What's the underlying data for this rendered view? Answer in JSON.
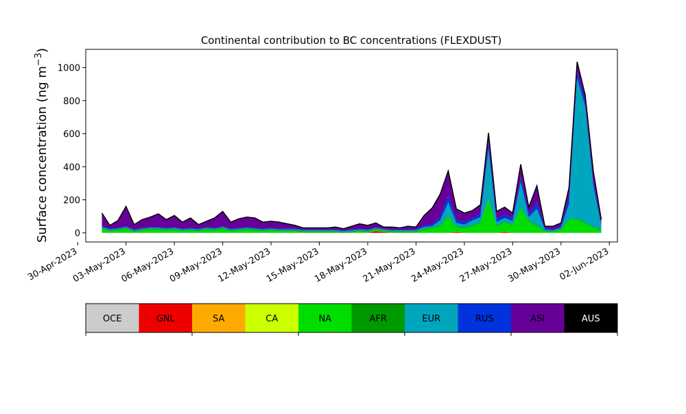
{
  "chart_data": {
    "type": "area",
    "stacked": true,
    "title": "Continental contribution to BC concentrations (FLEXDUST)",
    "ylabel_text": "Surface concentration (ng m",
    "ylabel_sup": "−3",
    "ylabel_close": ")",
    "xlabel": "",
    "x_axis": "date",
    "x_range": [
      "2023-04-30T12:00",
      "2023-06-02T12:00"
    ],
    "ylim": [
      -55,
      1110
    ],
    "yticks": [
      0,
      200,
      400,
      600,
      800,
      1000
    ],
    "xticks": [
      {
        "date": "2023-04-30",
        "label": "30-Apr-2023"
      },
      {
        "date": "2023-05-03",
        "label": "03-May-2023"
      },
      {
        "date": "2023-05-06",
        "label": "06-May-2023"
      },
      {
        "date": "2023-05-09",
        "label": "09-May-2023"
      },
      {
        "date": "2023-05-12",
        "label": "12-May-2023"
      },
      {
        "date": "2023-05-15",
        "label": "15-May-2023"
      },
      {
        "date": "2023-05-18",
        "label": "18-May-2023"
      },
      {
        "date": "2023-05-21",
        "label": "21-May-2023"
      },
      {
        "date": "2023-05-24",
        "label": "24-May-2023"
      },
      {
        "date": "2023-05-27",
        "label": "27-May-2023"
      },
      {
        "date": "2023-05-30",
        "label": "30-May-2023"
      },
      {
        "date": "2023-06-02",
        "label": "02-Jun-2023"
      }
    ],
    "x": [
      "2023-05-01T12:00",
      "2023-05-02T00:00",
      "2023-05-02T12:00",
      "2023-05-03T00:00",
      "2023-05-03T12:00",
      "2023-05-04T00:00",
      "2023-05-04T12:00",
      "2023-05-05T00:00",
      "2023-05-05T12:00",
      "2023-05-06T00:00",
      "2023-05-06T12:00",
      "2023-05-07T00:00",
      "2023-05-07T12:00",
      "2023-05-08T00:00",
      "2023-05-08T12:00",
      "2023-05-09T00:00",
      "2023-05-09T12:00",
      "2023-05-10T00:00",
      "2023-05-10T12:00",
      "2023-05-11T00:00",
      "2023-05-11T12:00",
      "2023-05-12T00:00",
      "2023-05-12T12:00",
      "2023-05-13T00:00",
      "2023-05-13T12:00",
      "2023-05-14T00:00",
      "2023-05-14T12:00",
      "2023-05-15T00:00",
      "2023-05-15T12:00",
      "2023-05-16T00:00",
      "2023-05-16T12:00",
      "2023-05-17T00:00",
      "2023-05-17T12:00",
      "2023-05-18T00:00",
      "2023-05-18T12:00",
      "2023-05-19T00:00",
      "2023-05-19T12:00",
      "2023-05-20T00:00",
      "2023-05-20T12:00",
      "2023-05-21T00:00",
      "2023-05-21T12:00",
      "2023-05-22T00:00",
      "2023-05-22T12:00",
      "2023-05-23T00:00",
      "2023-05-23T12:00",
      "2023-05-24T00:00",
      "2023-05-24T12:00",
      "2023-05-25T00:00",
      "2023-05-25T12:00",
      "2023-05-26T00:00",
      "2023-05-26T12:00",
      "2023-05-27T00:00",
      "2023-05-27T12:00",
      "2023-05-28T00:00",
      "2023-05-28T12:00",
      "2023-05-29T00:00",
      "2023-05-29T12:00",
      "2023-05-30T00:00",
      "2023-05-30T12:00",
      "2023-05-31T00:00",
      "2023-05-31T12:00",
      "2023-06-01T00:00",
      "2023-06-01T12:00"
    ],
    "series": [
      {
        "name": "OCE",
        "color": "#cccccc",
        "values": [
          0,
          0,
          0,
          0,
          0,
          0,
          0,
          0,
          0,
          0,
          0,
          0,
          0,
          0,
          0,
          0,
          0,
          0,
          0,
          0,
          0,
          0,
          0,
          0,
          0,
          0,
          0,
          0,
          0,
          0,
          0,
          0,
          0,
          0,
          0,
          0,
          0,
          0,
          0,
          0,
          0,
          0,
          0,
          0,
          0,
          0,
          0,
          0,
          0,
          0,
          0,
          0,
          0,
          0,
          0,
          0,
          0,
          0,
          0,
          0,
          0,
          0,
          0
        ]
      },
      {
        "name": "GNL",
        "color": "#ee0000",
        "values": [
          0,
          0,
          0,
          0,
          0,
          0,
          0,
          0,
          0,
          0,
          0,
          0,
          0,
          0,
          0,
          0,
          0,
          0,
          0,
          0,
          0,
          0,
          0,
          0,
          0,
          0,
          0,
          0,
          0,
          0,
          0,
          0,
          0,
          0,
          10,
          5,
          0,
          0,
          0,
          0,
          0,
          0,
          0,
          0,
          5,
          0,
          0,
          0,
          0,
          0,
          5,
          0,
          0,
          0,
          0,
          0,
          0,
          0,
          0,
          0,
          0,
          0,
          0
        ]
      },
      {
        "name": "SA",
        "color": "#ffaa00",
        "values": [
          0,
          0,
          0,
          0,
          0,
          0,
          0,
          0,
          0,
          0,
          0,
          0,
          0,
          0,
          0,
          0,
          0,
          0,
          0,
          0,
          0,
          0,
          0,
          0,
          0,
          0,
          0,
          0,
          0,
          0,
          0,
          0,
          0,
          0,
          0,
          0,
          0,
          0,
          0,
          0,
          0,
          0,
          0,
          0,
          0,
          0,
          0,
          0,
          0,
          0,
          0,
          0,
          0,
          0,
          0,
          0,
          0,
          0,
          0,
          0,
          0,
          0,
          0
        ]
      },
      {
        "name": "CA",
        "color": "#ccff00",
        "values": [
          0,
          0,
          0,
          0,
          0,
          0,
          0,
          0,
          0,
          0,
          0,
          0,
          0,
          0,
          0,
          0,
          0,
          0,
          0,
          0,
          0,
          0,
          0,
          0,
          0,
          0,
          0,
          0,
          0,
          0,
          0,
          0,
          0,
          0,
          0,
          0,
          0,
          0,
          0,
          0,
          0,
          0,
          0,
          0,
          0,
          0,
          0,
          0,
          0,
          0,
          0,
          0,
          0,
          0,
          0,
          0,
          0,
          0,
          0,
          0,
          0,
          0,
          0
        ]
      },
      {
        "name": "NA",
        "color": "#00dd00",
        "values": [
          25,
          10,
          15,
          25,
          5,
          15,
          20,
          20,
          15,
          20,
          10,
          15,
          10,
          20,
          15,
          25,
          10,
          15,
          20,
          15,
          10,
          15,
          10,
          10,
          10,
          5,
          5,
          5,
          5,
          5,
          0,
          5,
          10,
          5,
          10,
          5,
          5,
          5,
          5,
          5,
          20,
          30,
          40,
          100,
          30,
          30,
          40,
          60,
          200,
          40,
          60,
          45,
          150,
          70,
          40,
          10,
          5,
          20,
          80,
          80,
          60,
          30,
          15
        ]
      },
      {
        "name": "AFR",
        "color": "#009900",
        "values": [
          5,
          5,
          5,
          5,
          5,
          5,
          5,
          5,
          5,
          5,
          5,
          5,
          5,
          5,
          5,
          5,
          5,
          5,
          5,
          5,
          5,
          5,
          5,
          5,
          5,
          5,
          5,
          5,
          5,
          5,
          5,
          5,
          5,
          5,
          5,
          5,
          5,
          5,
          5,
          5,
          5,
          5,
          5,
          5,
          5,
          5,
          5,
          5,
          5,
          5,
          5,
          5,
          5,
          5,
          5,
          5,
          5,
          5,
          5,
          5,
          5,
          5,
          5
        ]
      },
      {
        "name": "EUR",
        "color": "#00a6bd",
        "values": [
          5,
          5,
          5,
          5,
          5,
          5,
          5,
          5,
          5,
          5,
          5,
          5,
          5,
          5,
          5,
          5,
          5,
          5,
          5,
          5,
          5,
          5,
          5,
          5,
          5,
          5,
          5,
          5,
          5,
          5,
          5,
          5,
          5,
          5,
          5,
          5,
          5,
          5,
          5,
          5,
          10,
          5,
          30,
          80,
          20,
          15,
          30,
          30,
          300,
          20,
          20,
          20,
          150,
          20,
          100,
          5,
          5,
          5,
          90,
          850,
          700,
          250,
          20
        ]
      },
      {
        "name": "RUS",
        "color": "#0033dd",
        "values": [
          5,
          5,
          5,
          5,
          5,
          5,
          5,
          5,
          5,
          5,
          5,
          5,
          5,
          5,
          5,
          5,
          5,
          5,
          5,
          5,
          5,
          5,
          5,
          5,
          5,
          5,
          5,
          5,
          5,
          5,
          5,
          5,
          5,
          5,
          5,
          5,
          5,
          5,
          5,
          5,
          10,
          10,
          20,
          40,
          20,
          15,
          15,
          20,
          40,
          20,
          20,
          20,
          30,
          20,
          40,
          10,
          5,
          10,
          40,
          40,
          30,
          30,
          10
        ]
      },
      {
        "name": "ASI",
        "color": "#660099",
        "values": [
          80,
          20,
          45,
          120,
          30,
          50,
          60,
          80,
          50,
          70,
          40,
          60,
          25,
          35,
          60,
          90,
          40,
          55,
          60,
          60,
          40,
          40,
          40,
          30,
          20,
          10,
          10,
          10,
          10,
          15,
          10,
          20,
          30,
          25,
          25,
          10,
          15,
          10,
          20,
          15,
          60,
          100,
          140,
          150,
          65,
          55,
          45,
          55,
          60,
          45,
          45,
          30,
          80,
          40,
          100,
          10,
          20,
          20,
          60,
          60,
          40,
          60,
          30
        ]
      },
      {
        "name": "AUS",
        "color": "#000000",
        "values": [
          0,
          0,
          0,
          0,
          0,
          0,
          0,
          0,
          0,
          0,
          0,
          0,
          0,
          0,
          0,
          0,
          0,
          0,
          0,
          0,
          0,
          0,
          0,
          0,
          0,
          0,
          0,
          0,
          0,
          0,
          0,
          0,
          0,
          0,
          0,
          0,
          0,
          0,
          0,
          0,
          0,
          0,
          0,
          0,
          0,
          0,
          0,
          0,
          0,
          0,
          0,
          0,
          0,
          0,
          0,
          0,
          0,
          0,
          0,
          0,
          0,
          0,
          0
        ]
      }
    ],
    "legend_placement": "bottom"
  }
}
